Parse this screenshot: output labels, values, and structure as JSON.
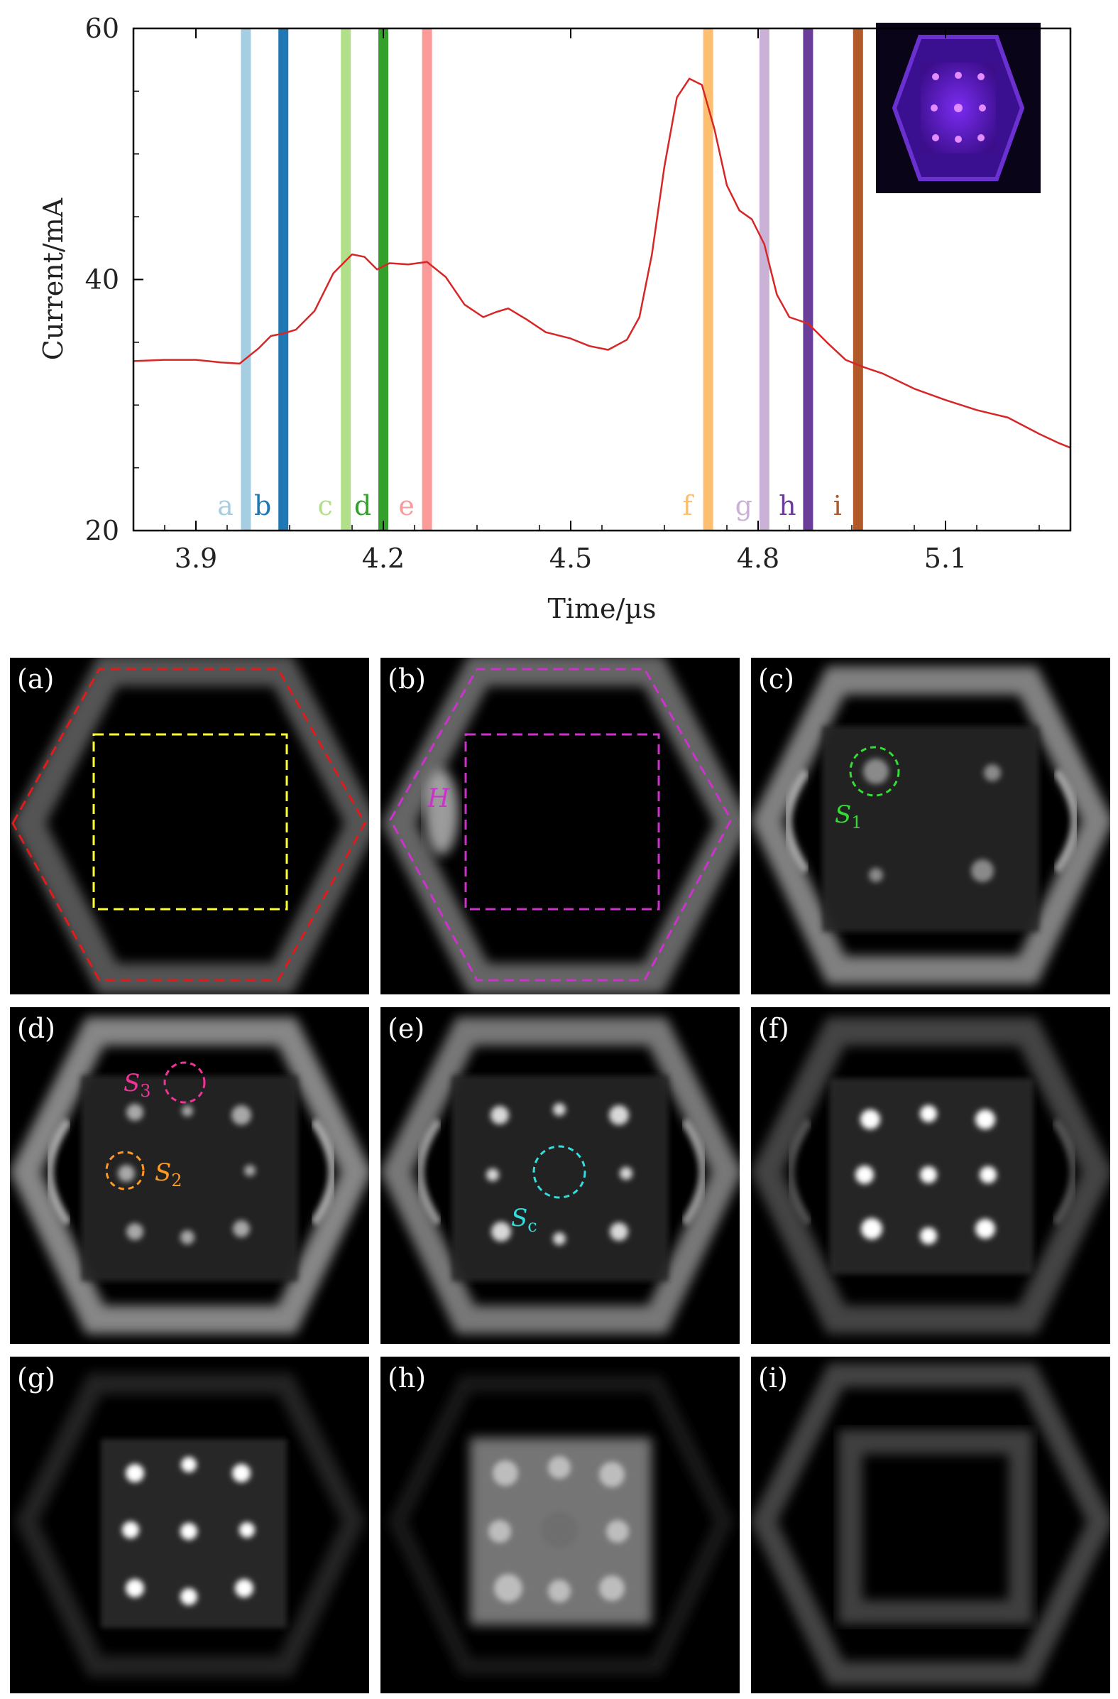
{
  "chart_data": {
    "type": "line",
    "xlabel": "Time/µs",
    "ylabel": "Current/mA",
    "xlim": [
      3.8,
      5.3
    ],
    "ylim": [
      20,
      60
    ],
    "x_ticks": [
      3.9,
      4.2,
      4.5,
      4.8,
      5.1
    ],
    "x_tick_labels": [
      "3.9",
      "4.2",
      "4.5",
      "4.8",
      "5.1"
    ],
    "y_ticks": [
      20,
      40,
      60
    ],
    "y_tick_labels": [
      "20",
      "40",
      "60"
    ],
    "grid": false,
    "line_color": "#d62728",
    "series": [
      {
        "x": [
          3.8,
          3.85,
          3.9,
          3.94,
          3.97,
          4.0,
          4.02,
          4.04,
          4.06,
          4.09,
          4.12,
          4.15,
          4.17,
          4.19,
          4.21,
          4.24,
          4.27,
          4.3,
          4.33,
          4.36,
          4.38,
          4.4,
          4.43,
          4.46,
          4.5,
          4.53,
          4.56,
          4.59,
          4.61,
          4.63,
          4.65,
          4.67,
          4.69,
          4.71,
          4.73,
          4.75,
          4.77,
          4.79,
          4.81,
          4.83,
          4.85,
          4.88,
          4.91,
          4.94,
          4.97,
          5.0,
          5.05,
          5.1,
          5.15,
          5.2,
          5.25,
          5.28,
          5.3
        ],
        "y": [
          33.5,
          33.6,
          33.6,
          33.4,
          33.3,
          34.5,
          35.5,
          35.7,
          36.0,
          37.5,
          40.5,
          42.0,
          41.8,
          40.8,
          41.3,
          41.2,
          41.4,
          40.2,
          38.0,
          37.0,
          37.4,
          37.7,
          36.8,
          35.8,
          35.3,
          34.7,
          34.4,
          35.2,
          37.0,
          42.0,
          49.0,
          54.5,
          56.0,
          55.5,
          52.0,
          47.5,
          45.5,
          44.8,
          42.8,
          38.8,
          37.0,
          36.5,
          35.0,
          33.6,
          33.0,
          32.5,
          31.3,
          30.4,
          29.6,
          29.0,
          27.7,
          27.0,
          26.6
        ]
      }
    ],
    "markers": [
      {
        "label": "a",
        "x": 3.98,
        "color": "#a6cee3"
      },
      {
        "label": "b",
        "x": 4.04,
        "color": "#1f78b4"
      },
      {
        "label": "c",
        "x": 4.14,
        "color": "#b2df8a"
      },
      {
        "label": "d",
        "x": 4.2,
        "color": "#33a02c"
      },
      {
        "label": "e",
        "x": 4.27,
        "color": "#fb9a99"
      },
      {
        "label": "f",
        "x": 4.72,
        "color": "#fdbf6f"
      },
      {
        "label": "g",
        "x": 4.81,
        "color": "#cab2d6"
      },
      {
        "label": "h",
        "x": 4.88,
        "color": "#6a3d9a"
      },
      {
        "label": "i",
        "x": 4.96,
        "color": "#b15928"
      }
    ],
    "inset": "plasma-discharge-image"
  },
  "panels": [
    {
      "label": "(a)",
      "annotations": []
    },
    {
      "label": "(b)",
      "annotations": [
        "H"
      ]
    },
    {
      "label": "(c)",
      "annotations": [
        "S",
        "1"
      ]
    },
    {
      "label": "(d)",
      "annotations": [
        "S",
        "3",
        "S",
        "2"
      ]
    },
    {
      "label": "(e)",
      "annotations": [
        "S",
        "c"
      ]
    },
    {
      "label": "(f)",
      "annotations": []
    },
    {
      "label": "(g)",
      "annotations": []
    },
    {
      "label": "(h)",
      "annotations": []
    },
    {
      "label": "(i)",
      "annotations": []
    }
  ],
  "colors": {
    "hex_outline_a": "#e31a1c",
    "square_outline_a": "#ffff33",
    "outline_b": "#cc33cc",
    "s1": "#33dd33",
    "s3": "#ee3399",
    "s2": "#ff9922",
    "sc": "#33dddd"
  }
}
